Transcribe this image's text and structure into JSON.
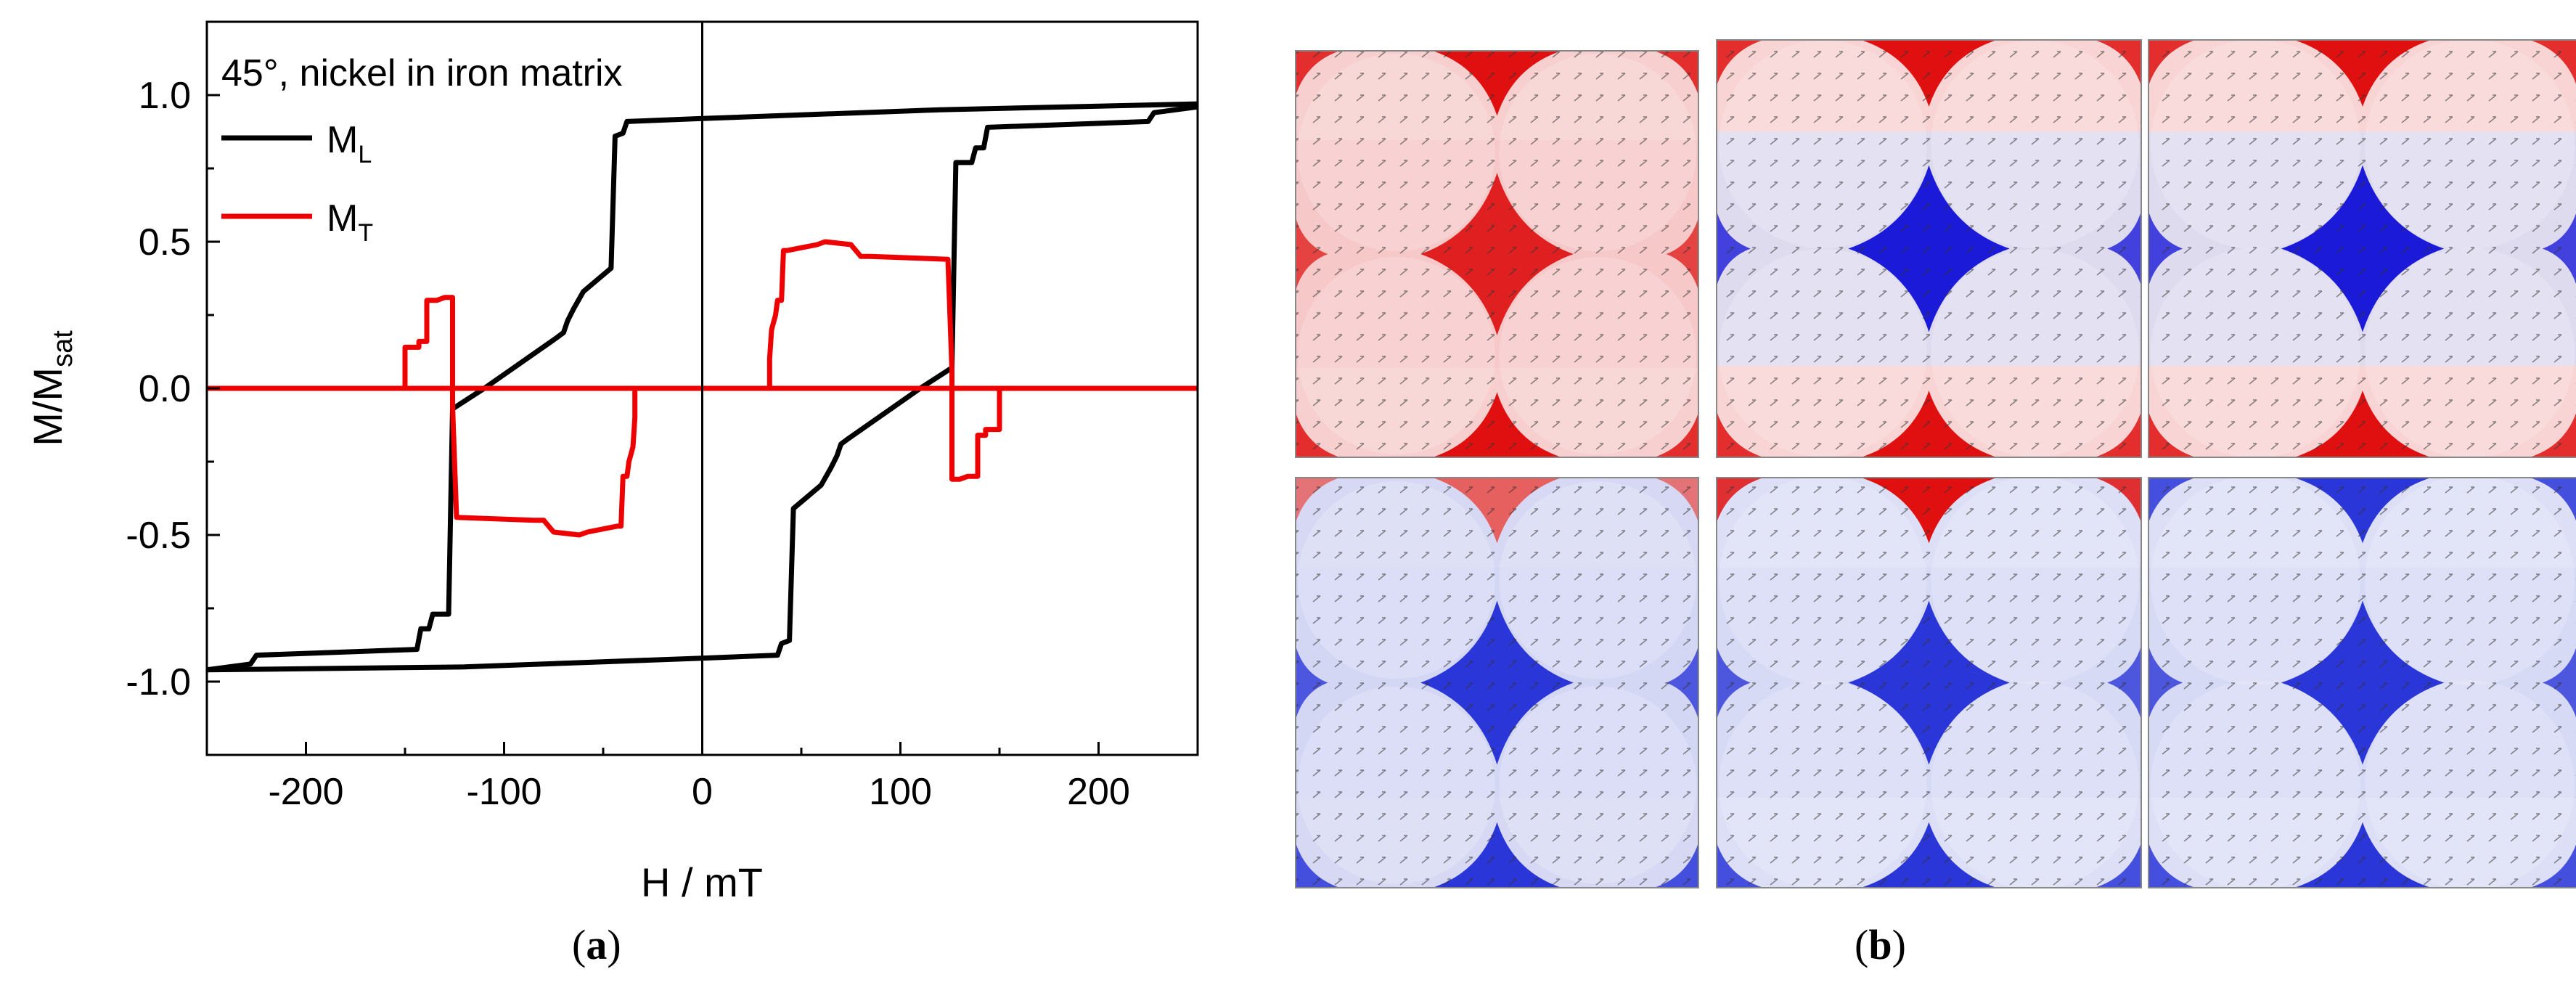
{
  "chart_data": {
    "type": "line",
    "title": "45°, nickel in iron matrix",
    "xlabel": "H / mT",
    "ylabel": "M/M",
    "ylabel_sub": "sat",
    "xlim": [
      -250,
      250
    ],
    "ylim": [
      -1.25,
      1.25
    ],
    "xticks": [
      -200,
      -100,
      0,
      100,
      200
    ],
    "xtick_labels": [
      "-200",
      "-100",
      "0",
      "100",
      "200"
    ],
    "yticks": [
      -1.0,
      -0.5,
      0.0,
      0.5,
      1.0
    ],
    "ytick_labels": [
      "-1.0",
      "-0.5",
      "0.0",
      "0.5",
      "1.0"
    ],
    "legend": [
      {
        "name": "M",
        "sub": "L",
        "color": "#000000"
      },
      {
        "name": "M",
        "sub": "T",
        "color": "#ee0000"
      }
    ],
    "series": [
      {
        "name": "M_L",
        "color": "#000000",
        "points": [
          [
            250,
            0.97
          ],
          [
            120,
            0.95
          ],
          [
            0,
            0.92
          ],
          [
            -38,
            0.91
          ],
          [
            -40,
            0.87
          ],
          [
            -44,
            0.86
          ],
          [
            -46,
            0.41
          ],
          [
            -60,
            0.33
          ],
          [
            -65,
            0.27
          ],
          [
            -68,
            0.23
          ],
          [
            -70,
            0.19
          ],
          [
            -74,
            0.17
          ],
          [
            -110,
            0.0
          ],
          [
            -126,
            -0.07
          ],
          [
            -128,
            -0.77
          ],
          [
            -136,
            -0.77
          ],
          [
            -138,
            -0.82
          ],
          [
            -142,
            -0.82
          ],
          [
            -144,
            -0.89
          ],
          [
            -225,
            -0.91
          ],
          [
            -228,
            -0.94
          ],
          [
            -250,
            -0.96
          ]
        ]
      },
      {
        "name": "M_L",
        "color": "#000000",
        "points": [
          [
            -250,
            -0.96
          ],
          [
            -120,
            -0.95
          ],
          [
            0,
            -0.92
          ],
          [
            38,
            -0.91
          ],
          [
            40,
            -0.87
          ],
          [
            44,
            -0.86
          ],
          [
            46,
            -0.41
          ],
          [
            60,
            -0.33
          ],
          [
            65,
            -0.27
          ],
          [
            68,
            -0.23
          ],
          [
            70,
            -0.19
          ],
          [
            74,
            -0.17
          ],
          [
            110,
            0.0
          ],
          [
            126,
            0.07
          ],
          [
            128,
            0.77
          ],
          [
            136,
            0.77
          ],
          [
            138,
            0.82
          ],
          [
            142,
            0.82
          ],
          [
            144,
            0.89
          ],
          [
            225,
            0.91
          ],
          [
            228,
            0.94
          ],
          [
            250,
            0.96
          ]
        ]
      },
      {
        "name": "M_T",
        "color": "#ee0000",
        "points": [
          [
            -250,
            0.0
          ],
          [
            250,
            0.0
          ]
        ]
      },
      {
        "name": "M_T",
        "color": "#ee0000",
        "points": [
          [
            -150,
            0.0
          ],
          [
            -150,
            0.14
          ],
          [
            -143,
            0.14
          ],
          [
            -143,
            0.16
          ],
          [
            -139,
            0.16
          ],
          [
            -139,
            0.3
          ],
          [
            -134,
            0.3
          ],
          [
            -130,
            0.31
          ],
          [
            -126,
            0.31
          ],
          [
            -126,
            -0.06
          ],
          [
            -124,
            -0.44
          ],
          [
            -85,
            -0.45
          ],
          [
            -80,
            -0.45
          ],
          [
            -75,
            -0.49
          ],
          [
            -62,
            -0.5
          ],
          [
            -58,
            -0.49
          ],
          [
            -43,
            -0.47
          ],
          [
            -41,
            -0.47
          ],
          [
            -40,
            -0.3
          ],
          [
            -38,
            -0.3
          ],
          [
            -37,
            -0.25
          ],
          [
            -35,
            -0.2
          ],
          [
            -34,
            -0.1
          ],
          [
            -34,
            0.0
          ]
        ]
      },
      {
        "name": "M_T",
        "color": "#ee0000",
        "points": [
          [
            150,
            0.0
          ],
          [
            150,
            -0.14
          ],
          [
            143,
            -0.14
          ],
          [
            143,
            -0.16
          ],
          [
            139,
            -0.16
          ],
          [
            139,
            -0.3
          ],
          [
            134,
            -0.3
          ],
          [
            130,
            -0.31
          ],
          [
            126,
            -0.31
          ],
          [
            126,
            0.06
          ],
          [
            124,
            0.44
          ],
          [
            85,
            0.45
          ],
          [
            80,
            0.45
          ],
          [
            75,
            0.49
          ],
          [
            62,
            0.5
          ],
          [
            58,
            0.49
          ],
          [
            43,
            0.47
          ],
          [
            41,
            0.47
          ],
          [
            40,
            0.3
          ],
          [
            38,
            0.3
          ],
          [
            37,
            0.25
          ],
          [
            35,
            0.2
          ],
          [
            34,
            0.1
          ],
          [
            34,
            0.0
          ]
        ]
      }
    ]
  },
  "panels": {
    "caption_a": "(a)",
    "caption_b": "(b)",
    "label_a": "a",
    "label_b": "b",
    "maps": [
      {
        "name": "panel-b-top-1",
        "top_color": "#e01010",
        "bg": "#f7cfcf",
        "middle": "#f6c6c6",
        "center": "#e02020"
      },
      {
        "name": "panel-b-top-2",
        "top_color": "#e01010",
        "bg": "#f8d4d4",
        "middle": "#d8dcf5",
        "center": "#1a1ad8"
      },
      {
        "name": "panel-b-top-3",
        "top_color": "#e01010",
        "bg": "#f8d4d4",
        "middle": "#d8dcf5",
        "center": "#1a1ad8"
      },
      {
        "name": "panel-b-bottom-1",
        "top_color": "#e66060",
        "bg": "#d7d9f4",
        "middle": "#d2d6f4",
        "center": "#2a36d8"
      },
      {
        "name": "panel-b-bottom-2",
        "top_color": "#e01010",
        "bg": "#dcdff6",
        "middle": "#d4d8f4",
        "center": "#2a36d8"
      },
      {
        "name": "panel-b-bottom-3",
        "top_color": "#2a36d8",
        "bg": "#dcdff6",
        "middle": "#d4d8f4",
        "center": "#2a36d8"
      }
    ]
  }
}
